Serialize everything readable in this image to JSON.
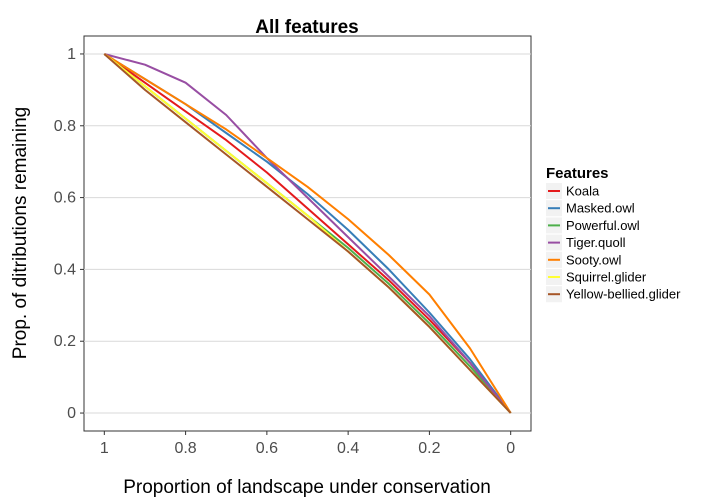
{
  "chart_data": {
    "type": "line",
    "title": "All features",
    "xlabel": "Proportion of landscape under conservation",
    "ylabel": "Prop. of ditributions remaining",
    "xlim": [
      1.05,
      -0.05
    ],
    "ylim": [
      -0.05,
      1.05
    ],
    "x_reversed": true,
    "xticks": [
      1,
      0.8,
      0.6,
      0.4,
      0.2,
      0
    ],
    "xtick_labels": [
      "1",
      "0.8",
      "0.6",
      "0.4",
      "0.2",
      "0"
    ],
    "yticks": [
      0,
      0.2,
      0.4,
      0.6,
      0.8,
      1
    ],
    "ytick_labels": [
      "0",
      "0.2",
      "0.4",
      "0.6",
      "0.8",
      "1"
    ],
    "grid": true,
    "legend": {
      "title": "Features",
      "position": "right"
    },
    "x": [
      1,
      0.9,
      0.8,
      0.7,
      0.6,
      0.5,
      0.4,
      0.3,
      0.2,
      0.1,
      0
    ],
    "series": [
      {
        "name": "Koala",
        "color": "#e41a1c",
        "values": [
          1,
          0.92,
          0.84,
          0.76,
          0.67,
          0.57,
          0.47,
          0.37,
          0.26,
          0.14,
          0
        ]
      },
      {
        "name": "Masked.owl",
        "color": "#377eb8",
        "values": [
          1,
          0.93,
          0.86,
          0.78,
          0.7,
          0.61,
          0.51,
          0.4,
          0.28,
          0.15,
          0
        ]
      },
      {
        "name": "Powerful.owl",
        "color": "#4daf4a",
        "values": [
          1,
          0.91,
          0.82,
          0.73,
          0.64,
          0.55,
          0.46,
          0.36,
          0.25,
          0.13,
          0
        ]
      },
      {
        "name": "Tiger.quoll",
        "color": "#984ea3",
        "values": [
          1,
          0.97,
          0.92,
          0.83,
          0.71,
          0.6,
          0.49,
          0.38,
          0.27,
          0.14,
          0
        ]
      },
      {
        "name": "Sooty.owl",
        "color": "#ff7f00",
        "values": [
          1,
          0.93,
          0.86,
          0.79,
          0.71,
          0.63,
          0.54,
          0.44,
          0.33,
          0.18,
          0
        ]
      },
      {
        "name": "Squirrel.glider",
        "color": "#ffff33",
        "values": [
          1,
          0.91,
          0.82,
          0.73,
          0.64,
          0.55,
          0.45,
          0.35,
          0.24,
          0.12,
          0
        ]
      },
      {
        "name": "Yellow-bellied.glider",
        "color": "#a65628",
        "values": [
          1,
          0.9,
          0.81,
          0.72,
          0.63,
          0.54,
          0.45,
          0.35,
          0.24,
          0.12,
          0
        ]
      }
    ]
  }
}
